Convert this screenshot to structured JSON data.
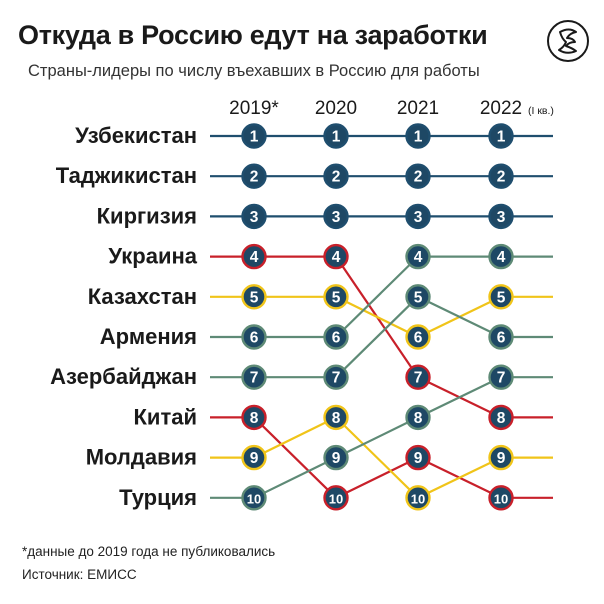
{
  "header": {
    "title": "Откуда в Россию едут на заработки",
    "subtitle": "Страны-лидеры по числу въехавших в Россию для работы",
    "logo_icon": "newspaper-logo-icon"
  },
  "chart_data": {
    "type": "line",
    "title": "Откуда в Россию едут на заработки",
    "subtitle": "Страны-лидеры по числу въехавших в Россию для работы",
    "x": [
      "2019*",
      "2020",
      "2021",
      "2022"
    ],
    "x_note": "(I кв.)",
    "y_scale": "rank",
    "ylim": [
      1,
      10
    ],
    "grid": false,
    "legend": "none",
    "series": [
      {
        "name": "Узбекистан",
        "color": "#1f4e6e",
        "values": [
          1,
          1,
          1,
          1
        ]
      },
      {
        "name": "Таджикистан",
        "color": "#1f4e6e",
        "values": [
          2,
          2,
          2,
          2
        ]
      },
      {
        "name": "Киргизия",
        "color": "#1f4e6e",
        "values": [
          3,
          3,
          3,
          3
        ]
      },
      {
        "name": "Украина",
        "color": "#c8202a",
        "values": [
          4,
          4,
          7,
          8
        ]
      },
      {
        "name": "Казахстан",
        "color": "#f0c419",
        "values": [
          5,
          5,
          6,
          5
        ]
      },
      {
        "name": "Армения",
        "color": "#5e8a76",
        "values": [
          6,
          6,
          4,
          4
        ]
      },
      {
        "name": "Азербайджан",
        "color": "#5e8a76",
        "values": [
          7,
          7,
          5,
          6
        ]
      },
      {
        "name": "Китай",
        "color": "#c8202a",
        "values": [
          8,
          10,
          9,
          10
        ]
      },
      {
        "name": "Молдавия",
        "color": "#f0c419",
        "values": [
          9,
          8,
          10,
          9
        ]
      },
      {
        "name": "Турция",
        "color": "#5e8a76",
        "values": [
          10,
          9,
          8,
          7
        ]
      }
    ]
  },
  "colors": {
    "node_fill": "#1e4865",
    "node_text": "#ffffff",
    "dark_blue": "#1f4e6e",
    "red": "#c8202a",
    "yellow": "#f0c419",
    "green": "#5e8a76"
  },
  "footnote": "*данные до 2019 года не публиковались",
  "source": "Источник: ЕМИСС"
}
